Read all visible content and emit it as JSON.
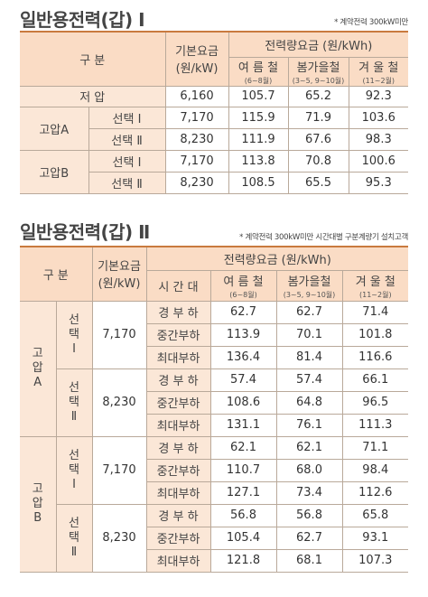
{
  "t1": {
    "title": "일반용전력(갑) Ⅰ",
    "note": "* 계약전력 300kW미만",
    "h_gubun": "구 분",
    "h_base": "기본요금",
    "h_base_unit": "(원/kW)",
    "h_energy": "전력량요금 (원/kWh)",
    "s_summer": "여 름 철",
    "s_summer_m": "(6~8월)",
    "s_spring": "봄가을철",
    "s_spring_m": "(3~5, 9~10월)",
    "s_winter": "겨 울 철",
    "s_winter_m": "(11~2월)",
    "rows": [
      {
        "g": "저 압",
        "base": "6,160",
        "s": "105.7",
        "sp": "65.2",
        "w": "92.3"
      },
      {
        "g": "고압A",
        "o": "선택 Ⅰ",
        "base": "7,170",
        "s": "115.9",
        "sp": "71.9",
        "w": "103.6"
      },
      {
        "o": "선택 Ⅱ",
        "base": "8,230",
        "s": "111.9",
        "sp": "67.6",
        "w": "98.3"
      },
      {
        "g": "고압B",
        "o": "선택 Ⅰ",
        "base": "7,170",
        "s": "113.8",
        "sp": "70.8",
        "w": "100.6"
      },
      {
        "o": "선택 Ⅱ",
        "base": "8,230",
        "s": "108.5",
        "sp": "65.5",
        "w": "95.3"
      }
    ]
  },
  "t2": {
    "title": "일반용전력(갑) Ⅱ",
    "note": "* 계약전력 300kW미만 시간대별 구분계량기 설치고객",
    "h_gubun": "구 분",
    "h_base": "기본요금",
    "h_base_unit": "(원/kW)",
    "h_energy": "전력량요금 (원/kWh)",
    "h_time": "시 간 대",
    "s_summer": "여 름 철",
    "s_summer_m": "(6~8월)",
    "s_spring": "봄가을철",
    "s_spring_m": "(3~5, 9~10월)",
    "s_winter": "겨 울 철",
    "s_winter_m": "(11~2월)",
    "g_a": "고압A",
    "g_b": "고압B",
    "o1": "선택Ⅰ",
    "o2": "선택Ⅱ",
    "base1": "7,170",
    "base2": "8,230",
    "loads": [
      "경 부 하",
      "중간부하",
      "최대부하"
    ],
    "rows": [
      {
        "s": "62.7",
        "sp": "62.7",
        "w": "71.4"
      },
      {
        "s": "113.9",
        "sp": "70.1",
        "w": "101.8"
      },
      {
        "s": "136.4",
        "sp": "81.4",
        "w": "116.6"
      },
      {
        "s": "57.4",
        "sp": "57.4",
        "w": "66.1"
      },
      {
        "s": "108.6",
        "sp": "64.8",
        "w": "96.5"
      },
      {
        "s": "131.1",
        "sp": "76.1",
        "w": "111.3"
      },
      {
        "s": "62.1",
        "sp": "62.1",
        "w": "71.1"
      },
      {
        "s": "110.7",
        "sp": "68.0",
        "w": "98.4"
      },
      {
        "s": "127.1",
        "sp": "73.4",
        "w": "112.6"
      },
      {
        "s": "56.8",
        "sp": "56.8",
        "w": "65.8"
      },
      {
        "s": "105.4",
        "sp": "62.7",
        "w": "93.1"
      },
      {
        "s": "121.8",
        "sp": "68.1",
        "w": "107.3"
      }
    ]
  }
}
